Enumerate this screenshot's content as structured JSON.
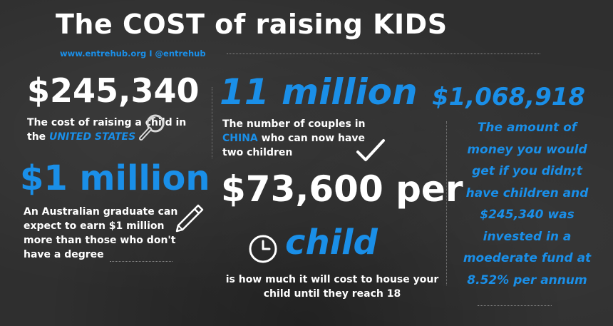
{
  "header": {
    "title": "The COST of raising KIDS",
    "subtitle": "www.entrehub.org I @entrehub"
  },
  "stat_us": {
    "value": "$245,340",
    "desc_line1": "The cost of raising a child in",
    "desc_prefix": "the",
    "desc_highlight": "UNITED STATES"
  },
  "stat_australia": {
    "value": "$1 million",
    "desc_lines": [
      "An Australian graduate can",
      "expect to earn $1 million",
      "more than those who don't",
      "have a degree"
    ]
  },
  "stat_china": {
    "value": "11 million",
    "desc_line1": "The number of couples in",
    "desc_highlight": "CHINA",
    "desc_line2_rest": " who can now have",
    "desc_line3": "two children"
  },
  "stat_housing": {
    "value": "$73,600 per",
    "value2": "child",
    "desc_lines": [
      "is how much it will cost to house your",
      "child until they reach 18"
    ]
  },
  "stat_invest": {
    "value": "$1,068,918",
    "desc_lines": [
      "The amount of",
      "money you would",
      "get if you didn;t",
      "have children and",
      "$245,340 was",
      "invested in a",
      "moederate fund at",
      "8.52% per annum"
    ]
  },
  "icons": [
    "magnifier-icon",
    "pencil-icon",
    "checkmark-icon",
    "clock-icon"
  ],
  "colors": {
    "accent": "#1a8fe8",
    "text": "#ffffff",
    "background": "#2f2f2f"
  }
}
